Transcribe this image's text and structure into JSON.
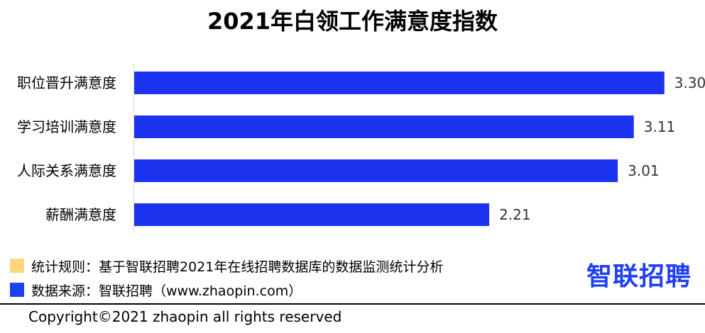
{
  "chart_data": {
    "type": "bar",
    "orientation": "horizontal",
    "title": "2021年白领工作满意度指数",
    "categories": [
      "职位晋升满意度",
      "学习培训满意度",
      "人际关系满意度",
      "薪酬满意度"
    ],
    "values": [
      3.3,
      3.11,
      3.01,
      2.21
    ],
    "value_labels": [
      "3.30",
      "3.11",
      "3.01",
      "2.21"
    ],
    "xlim": [
      0,
      3.5
    ],
    "bar_color": "#1c33f0",
    "grid": false,
    "legend_position": "bottom-left"
  },
  "legend": {
    "items": [
      {
        "text": "统计规则：基于智联招聘2021年在线招聘数据库的数据监测统计分析",
        "color": "#fdd77c"
      },
      {
        "text": "数据来源：智联招聘（www.zhaopin.com）",
        "color": "#1c3ff0"
      }
    ]
  },
  "brand": {
    "logo_text": "智联招聘",
    "color": "#1f3ff5"
  },
  "footer": {
    "copyright": "Copyright©2021 zhaopin all rights reserved"
  }
}
